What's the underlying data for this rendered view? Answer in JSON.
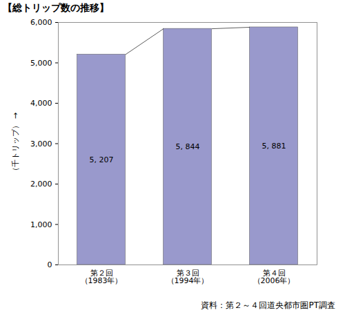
{
  "chart_data": {
    "type": "bar",
    "title": "【総トリップ数の推移】",
    "y_label": "（千トリップ）",
    "source": "資料：第２～４回道央都市圏PT調査",
    "categories": [
      "第２回\n（1983年）",
      "第３回\n（1994年）",
      "第４回\n（2006年）"
    ],
    "values": [
      5207,
      5844,
      5881
    ],
    "value_labels": [
      "5, 207",
      "5, 844",
      "5, 881"
    ],
    "data_labels": true,
    "color": "#9999cc",
    "ylim": [
      0,
      6000
    ],
    "yticks": [
      0,
      {
        "value": 1000,
        "label": "1,000"
      },
      {
        "value": 2000,
        "label": "2,000"
      },
      {
        "value": 3000,
        "label": "3,000"
      },
      {
        "value": 4000,
        "label": "4,000"
      },
      {
        "value": 5000,
        "label": "5,000"
      },
      {
        "value": 6000,
        "label": "6,000"
      }
    ],
    "grid": false
  }
}
